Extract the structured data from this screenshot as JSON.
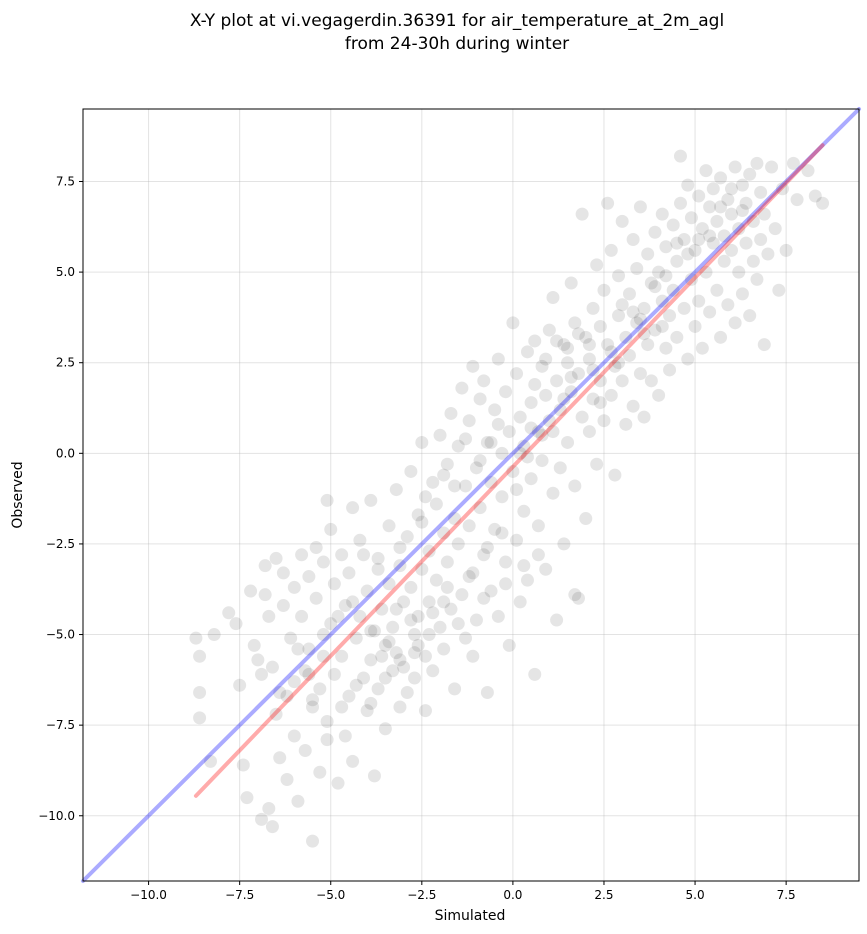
{
  "chart_data": {
    "type": "scatter",
    "title_lines": [
      "X-Y plot at vi.vegagerdin.36391 for air_temperature_at_2m_agl",
      "from 24-30h during winter"
    ],
    "xlabel": "Simulated",
    "ylabel": "Observed",
    "xlim": [
      -11.8,
      9.5
    ],
    "ylim": [
      -11.8,
      9.5
    ],
    "xticks": [
      -10.0,
      -7.5,
      -5.0,
      -2.5,
      0.0,
      2.5,
      5.0,
      7.5
    ],
    "yticks": [
      -10.0,
      -7.5,
      -5.0,
      -2.5,
      0.0,
      2.5,
      5.0,
      7.5
    ],
    "xtick_labels": [
      "−10.0",
      "−7.5",
      "−5.0",
      "−2.5",
      "0.0",
      "2.5",
      "5.0",
      "7.5"
    ],
    "ytick_labels": [
      "−10.0",
      "−7.5",
      "−5.0",
      "−2.5",
      "0.0",
      "2.5",
      "5.0",
      "7.5"
    ],
    "grid": true,
    "colors": {
      "points": "#000000",
      "identity_line": "#0000ff",
      "fit_line": "#ff0000"
    },
    "identity_line": {
      "x": [
        -11.8,
        9.5
      ],
      "y": [
        -11.8,
        9.5
      ]
    },
    "fit_line": {
      "x": [
        -8.7,
        8.5
      ],
      "y": [
        -9.45,
        8.5
      ]
    },
    "points": [
      [
        -8.7,
        -5.1
      ],
      [
        -8.6,
        -5.6
      ],
      [
        -8.6,
        -6.6
      ],
      [
        -8.6,
        -7.3
      ],
      [
        -8.3,
        -8.5
      ],
      [
        -8.2,
        -5.0
      ],
      [
        -7.8,
        -4.4
      ],
      [
        -7.6,
        -4.7
      ],
      [
        -7.5,
        -6.4
      ],
      [
        -7.4,
        -8.6
      ],
      [
        -7.3,
        -9.5
      ],
      [
        -7.2,
        -3.8
      ],
      [
        -7.1,
        -5.3
      ],
      [
        -7.0,
        -5.7
      ],
      [
        -6.9,
        -6.1
      ],
      [
        -6.9,
        -10.1
      ],
      [
        -6.8,
        -3.1
      ],
      [
        -6.8,
        -3.9
      ],
      [
        -6.7,
        -4.5
      ],
      [
        -6.7,
        -9.8
      ],
      [
        -6.6,
        -5.9
      ],
      [
        -6.6,
        -10.3
      ],
      [
        -6.5,
        -2.9
      ],
      [
        -6.5,
        -7.2
      ],
      [
        -6.4,
        -8.4
      ],
      [
        -6.3,
        -3.3
      ],
      [
        -6.3,
        -4.2
      ],
      [
        -6.2,
        -6.7
      ],
      [
        -6.2,
        -9.0
      ],
      [
        -6.1,
        -5.1
      ],
      [
        -6.0,
        -3.7
      ],
      [
        -6.0,
        -7.8
      ],
      [
        -5.9,
        -9.6
      ],
      [
        -5.8,
        -2.8
      ],
      [
        -5.8,
        -4.5
      ],
      [
        -5.7,
        -6.0
      ],
      [
        -5.7,
        -8.2
      ],
      [
        -5.6,
        -3.4
      ],
      [
        -5.6,
        -5.4
      ],
      [
        -5.5,
        -7.0
      ],
      [
        -5.5,
        -10.7
      ],
      [
        -5.4,
        -2.6
      ],
      [
        -5.4,
        -4.0
      ],
      [
        -5.3,
        -6.5
      ],
      [
        -5.3,
        -8.8
      ],
      [
        -5.2,
        -3.0
      ],
      [
        -5.2,
        -5.0
      ],
      [
        -5.1,
        -1.3
      ],
      [
        -5.1,
        -7.4
      ],
      [
        -5.0,
        -2.1
      ],
      [
        -5.0,
        -4.7
      ],
      [
        -4.9,
        -3.6
      ],
      [
        -4.9,
        -6.1
      ],
      [
        -4.8,
        -9.1
      ],
      [
        -4.7,
        -2.8
      ],
      [
        -4.7,
        -5.6
      ],
      [
        -4.6,
        -4.2
      ],
      [
        -4.6,
        -7.8
      ],
      [
        -4.5,
        -3.3
      ],
      [
        -4.5,
        -6.7
      ],
      [
        -4.4,
        -1.5
      ],
      [
        -4.4,
        -8.5
      ],
      [
        -4.3,
        -5.1
      ],
      [
        -4.2,
        -2.4
      ],
      [
        -4.2,
        -4.5
      ],
      [
        -4.1,
        -6.2
      ],
      [
        -4.0,
        -3.8
      ],
      [
        -4.0,
        -7.1
      ],
      [
        -3.9,
        -1.3
      ],
      [
        -3.9,
        -5.7
      ],
      [
        -3.8,
        -4.9
      ],
      [
        -3.8,
        -8.9
      ],
      [
        -3.7,
        -2.9
      ],
      [
        -3.7,
        -6.5
      ],
      [
        -3.6,
        -4.3
      ],
      [
        -3.5,
        -5.3
      ],
      [
        -3.5,
        -7.6
      ],
      [
        -3.4,
        -2.0
      ],
      [
        -3.4,
        -3.6
      ],
      [
        -3.3,
        -4.8
      ],
      [
        -3.3,
        -6.0
      ],
      [
        -3.2,
        -1.0
      ],
      [
        -3.2,
        -5.5
      ],
      [
        -3.1,
        -3.1
      ],
      [
        -3.1,
        -7.0
      ],
      [
        -3.0,
        -4.1
      ],
      [
        -3.0,
        -5.9
      ],
      [
        -2.9,
        -2.3
      ],
      [
        -2.9,
        -6.6
      ],
      [
        -2.8,
        -0.5
      ],
      [
        -2.8,
        -3.7
      ],
      [
        -2.7,
        -5.0
      ],
      [
        -2.7,
        -6.2
      ],
      [
        -2.6,
        -1.7
      ],
      [
        -2.6,
        -4.5
      ],
      [
        -2.5,
        0.3
      ],
      [
        -2.5,
        -3.2
      ],
      [
        -2.4,
        -5.6
      ],
      [
        -2.4,
        -7.1
      ],
      [
        -2.3,
        -2.7
      ],
      [
        -2.3,
        -4.1
      ],
      [
        -2.2,
        -0.8
      ],
      [
        -2.2,
        -6.0
      ],
      [
        -2.1,
        -1.4
      ],
      [
        -2.1,
        -3.5
      ],
      [
        -2.0,
        0.5
      ],
      [
        -2.0,
        -4.8
      ],
      [
        -1.9,
        -2.2
      ],
      [
        -1.9,
        -5.4
      ],
      [
        -1.8,
        -0.3
      ],
      [
        -1.8,
        -3.0
      ],
      [
        -1.7,
        1.1
      ],
      [
        -1.7,
        -4.3
      ],
      [
        -1.6,
        -1.8
      ],
      [
        -1.6,
        -6.5
      ],
      [
        -1.5,
        0.2
      ],
      [
        -1.5,
        -2.5
      ],
      [
        -1.4,
        1.8
      ],
      [
        -1.4,
        -3.9
      ],
      [
        -1.3,
        -0.9
      ],
      [
        -1.3,
        -5.1
      ],
      [
        -1.2,
        0.9
      ],
      [
        -1.2,
        -2.0
      ],
      [
        -1.1,
        2.4
      ],
      [
        -1.1,
        -3.3
      ],
      [
        -1.0,
        -0.4
      ],
      [
        -1.0,
        -4.6
      ],
      [
        -0.9,
        1.5
      ],
      [
        -0.9,
        -1.5
      ],
      [
        -0.8,
        2.0
      ],
      [
        -0.8,
        -2.8
      ],
      [
        -0.7,
        0.3
      ],
      [
        -0.7,
        -6.6
      ],
      [
        -0.6,
        -0.8
      ],
      [
        -0.6,
        -3.8
      ],
      [
        -0.5,
        1.2
      ],
      [
        -0.5,
        -2.1
      ],
      [
        -0.4,
        2.6
      ],
      [
        -0.4,
        -4.5
      ],
      [
        -0.3,
        0.0
      ],
      [
        -0.3,
        -1.2
      ],
      [
        -0.2,
        1.7
      ],
      [
        -0.2,
        -3.0
      ],
      [
        -0.1,
        0.6
      ],
      [
        -0.1,
        -5.3
      ],
      [
        0.0,
        3.6
      ],
      [
        0.0,
        -0.5
      ],
      [
        0.1,
        2.2
      ],
      [
        0.1,
        -2.4
      ],
      [
        0.2,
        1.0
      ],
      [
        0.2,
        -4.1
      ],
      [
        0.3,
        0.2
      ],
      [
        0.3,
        -1.6
      ],
      [
        0.4,
        2.8
      ],
      [
        0.4,
        -3.5
      ],
      [
        0.5,
        1.4
      ],
      [
        0.5,
        -0.7
      ],
      [
        0.6,
        3.1
      ],
      [
        0.6,
        -6.1
      ],
      [
        0.7,
        0.6
      ],
      [
        0.7,
        -2.0
      ],
      [
        0.8,
        2.4
      ],
      [
        0.8,
        -0.2
      ],
      [
        0.9,
        1.6
      ],
      [
        0.9,
        -3.2
      ],
      [
        1.0,
        3.4
      ],
      [
        1.0,
        0.9
      ],
      [
        1.1,
        4.3
      ],
      [
        1.1,
        -1.1
      ],
      [
        1.2,
        2.0
      ],
      [
        1.2,
        -4.6
      ],
      [
        1.3,
        1.2
      ],
      [
        1.3,
        -0.4
      ],
      [
        1.4,
        3.0
      ],
      [
        1.4,
        -2.5
      ],
      [
        1.5,
        2.5
      ],
      [
        1.5,
        0.3
      ],
      [
        1.6,
        4.7
      ],
      [
        1.6,
        1.7
      ],
      [
        1.7,
        3.6
      ],
      [
        1.7,
        -0.9
      ],
      [
        1.8,
        2.2
      ],
      [
        1.8,
        -4.0
      ],
      [
        1.9,
        1.0
      ],
      [
        1.9,
        6.6
      ],
      [
        2.0,
        3.2
      ],
      [
        2.0,
        -1.8
      ],
      [
        2.1,
        2.6
      ],
      [
        2.1,
        0.6
      ],
      [
        2.2,
        4.0
      ],
      [
        2.2,
        1.5
      ],
      [
        2.3,
        5.2
      ],
      [
        2.3,
        -0.3
      ],
      [
        2.4,
        3.5
      ],
      [
        2.4,
        2.0
      ],
      [
        2.5,
        4.5
      ],
      [
        2.5,
        0.9
      ],
      [
        2.6,
        3.0
      ],
      [
        2.6,
        6.9
      ],
      [
        2.7,
        1.6
      ],
      [
        2.7,
        5.6
      ],
      [
        2.8,
        2.4
      ],
      [
        2.8,
        -0.6
      ],
      [
        2.9,
        3.8
      ],
      [
        2.9,
        4.9
      ],
      [
        3.0,
        2.0
      ],
      [
        3.0,
        6.4
      ],
      [
        3.1,
        3.2
      ],
      [
        3.1,
        0.8
      ],
      [
        3.2,
        4.4
      ],
      [
        3.2,
        2.7
      ],
      [
        3.3,
        5.9
      ],
      [
        3.3,
        1.3
      ],
      [
        3.4,
        3.6
      ],
      [
        3.4,
        5.1
      ],
      [
        3.5,
        2.2
      ],
      [
        3.5,
        6.8
      ],
      [
        3.6,
        4.0
      ],
      [
        3.6,
        1.0
      ],
      [
        3.7,
        5.5
      ],
      [
        3.7,
        3.0
      ],
      [
        3.8,
        4.7
      ],
      [
        3.8,
        2.0
      ],
      [
        3.9,
        6.1
      ],
      [
        3.9,
        3.4
      ],
      [
        4.0,
        5.0
      ],
      [
        4.0,
        1.6
      ],
      [
        4.1,
        4.2
      ],
      [
        4.1,
        6.6
      ],
      [
        4.2,
        2.9
      ],
      [
        4.2,
        5.7
      ],
      [
        4.3,
        3.8
      ],
      [
        4.3,
        2.3
      ],
      [
        4.4,
        6.3
      ],
      [
        4.4,
        4.5
      ],
      [
        4.5,
        5.3
      ],
      [
        4.5,
        3.2
      ],
      [
        4.6,
        6.9
      ],
      [
        4.6,
        8.2
      ],
      [
        4.7,
        4.0
      ],
      [
        4.7,
        5.9
      ],
      [
        4.8,
        2.6
      ],
      [
        4.8,
        7.4
      ],
      [
        4.9,
        4.8
      ],
      [
        4.9,
        6.5
      ],
      [
        5.0,
        3.5
      ],
      [
        5.0,
        5.6
      ],
      [
        5.1,
        7.1
      ],
      [
        5.1,
        4.2
      ],
      [
        5.2,
        6.2
      ],
      [
        5.2,
        2.9
      ],
      [
        5.3,
        7.8
      ],
      [
        5.3,
        5.0
      ],
      [
        5.4,
        6.8
      ],
      [
        5.4,
        3.9
      ],
      [
        5.5,
        5.8
      ],
      [
        5.5,
        7.3
      ],
      [
        5.6,
        4.5
      ],
      [
        5.6,
        6.4
      ],
      [
        5.7,
        3.2
      ],
      [
        5.7,
        7.6
      ],
      [
        5.8,
        5.3
      ],
      [
        5.8,
        6.0
      ],
      [
        5.9,
        4.1
      ],
      [
        5.9,
        7.0
      ],
      [
        6.0,
        5.6
      ],
      [
        6.0,
        6.6
      ],
      [
        6.1,
        3.6
      ],
      [
        6.1,
        7.9
      ],
      [
        6.2,
        5.0
      ],
      [
        6.2,
        6.2
      ],
      [
        6.3,
        4.4
      ],
      [
        6.3,
        7.4
      ],
      [
        6.4,
        5.8
      ],
      [
        6.4,
        6.9
      ],
      [
        6.5,
        3.8
      ],
      [
        6.5,
        7.7
      ],
      [
        6.6,
        5.3
      ],
      [
        6.6,
        6.4
      ],
      [
        6.7,
        4.8
      ],
      [
        6.7,
        8.0
      ],
      [
        6.8,
        5.9
      ],
      [
        6.8,
        7.2
      ],
      [
        6.9,
        3.0
      ],
      [
        6.9,
        6.6
      ],
      [
        7.0,
        5.5
      ],
      [
        7.1,
        7.9
      ],
      [
        7.2,
        6.2
      ],
      [
        7.3,
        4.5
      ],
      [
        7.4,
        7.3
      ],
      [
        7.5,
        5.6
      ],
      [
        7.7,
        8.0
      ],
      [
        7.8,
        7.0
      ],
      [
        8.1,
        7.8
      ],
      [
        8.3,
        7.1
      ],
      [
        8.5,
        6.9
      ],
      [
        -2.4,
        -1.2
      ],
      [
        -1.9,
        -0.6
      ],
      [
        -1.3,
        0.4
      ],
      [
        -0.9,
        -0.2
      ],
      [
        -0.4,
        0.8
      ],
      [
        0.2,
        0.0
      ],
      [
        0.6,
        1.9
      ],
      [
        0.9,
        2.6
      ],
      [
        1.2,
        3.1
      ],
      [
        1.5,
        2.9
      ],
      [
        1.8,
        3.3
      ],
      [
        2.1,
        3.0
      ],
      [
        2.4,
        1.4
      ],
      [
        2.7,
        2.8
      ],
      [
        3.0,
        4.1
      ],
      [
        3.3,
        3.9
      ],
      [
        3.6,
        3.3
      ],
      [
        3.9,
        4.6
      ],
      [
        4.2,
        4.9
      ],
      [
        4.5,
        5.8
      ],
      [
        4.8,
        5.5
      ],
      [
        5.1,
        5.9
      ],
      [
        5.4,
        6.0
      ],
      [
        5.7,
        6.8
      ],
      [
        6.0,
        7.3
      ],
      [
        6.3,
        6.7
      ],
      [
        -3.6,
        -5.6
      ],
      [
        -3.2,
        -4.3
      ],
      [
        -2.8,
        -4.6
      ],
      [
        -3.9,
        -4.9
      ],
      [
        -3.4,
        -5.2
      ],
      [
        -2.6,
        -5.3
      ],
      [
        -2.2,
        -4.4
      ],
      [
        -1.8,
        -3.7
      ],
      [
        -1.2,
        -3.4
      ],
      [
        -0.7,
        -2.6
      ],
      [
        -0.3,
        -2.2
      ],
      [
        0.1,
        -1.0
      ],
      [
        0.4,
        -0.1
      ],
      [
        0.8,
        0.5
      ],
      [
        1.1,
        0.6
      ],
      [
        1.4,
        1.5
      ],
      [
        -4.4,
        -4.1
      ],
      [
        -4.8,
        -4.5
      ],
      [
        -5.2,
        -5.6
      ],
      [
        -5.6,
        -6.1
      ],
      [
        -6.0,
        -6.3
      ],
      [
        -6.4,
        -6.6
      ],
      [
        -4.1,
        -2.8
      ],
      [
        -3.7,
        -3.2
      ],
      [
        -3.1,
        -2.6
      ],
      [
        -2.5,
        -1.9
      ],
      [
        -1.6,
        -0.9
      ],
      [
        -0.6,
        0.3
      ],
      [
        0.5,
        0.7
      ],
      [
        1.6,
        2.1
      ],
      [
        2.2,
        2.3
      ],
      [
        2.9,
        2.5
      ],
      [
        3.5,
        3.7
      ],
      [
        4.1,
        3.5
      ],
      [
        -5.9,
        -5.4
      ],
      [
        -5.5,
        -6.8
      ],
      [
        -5.1,
        -7.9
      ],
      [
        -4.7,
        -7.0
      ],
      [
        -4.3,
        -6.4
      ],
      [
        -3.9,
        -6.9
      ],
      [
        -3.5,
        -6.2
      ],
      [
        -3.1,
        -5.7
      ],
      [
        -2.7,
        -5.5
      ],
      [
        -2.3,
        -5.0
      ],
      [
        -1.9,
        -4.1
      ],
      [
        -1.5,
        -4.7
      ],
      [
        -1.1,
        -5.6
      ],
      [
        -0.8,
        -4.0
      ],
      [
        -0.2,
        -3.6
      ],
      [
        0.3,
        -3.1
      ],
      [
        0.7,
        -2.8
      ],
      [
        1.7,
        -3.9
      ]
    ]
  }
}
